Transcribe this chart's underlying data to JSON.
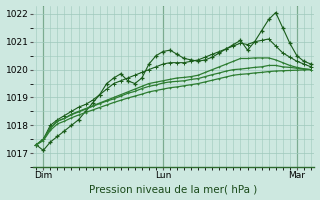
{
  "title": "",
  "xlabel": "Pression niveau de la mer( hPa )",
  "ylim": [
    1016.5,
    1022.3
  ],
  "yticks": [
    1017,
    1018,
    1019,
    1020,
    1021,
    1022
  ],
  "bg_color": "#cde8e0",
  "grid_color": "#9ec8bc",
  "line_color_dark": "#1a5c1a",
  "line_color_med": "#2e7d32",
  "xlabel_color": "#1a4a1a",
  "xlabel_fontsize": 7.5,
  "tick_fontsize": 6.5,
  "xtick_labels": [
    "Dim",
    "Lun",
    "Mar"
  ],
  "vline_color": "#2e6b2e",
  "series": [
    [
      1017.3,
      1017.1,
      1017.4,
      1017.6,
      1017.8,
      1018.0,
      1018.2,
      1018.5,
      1018.8,
      1019.1,
      1019.5,
      1019.7,
      1019.85,
      1019.6,
      1019.5,
      1019.7,
      1020.2,
      1020.5,
      1020.65,
      1020.7,
      1020.55,
      1020.4,
      1020.35,
      1020.3,
      1020.35,
      1020.45,
      1020.6,
      1020.75,
      1020.9,
      1021.05,
      1020.7,
      1021.0,
      1021.4,
      1021.8,
      1022.05,
      1021.5,
      1020.95,
      1020.5,
      1020.3,
      1020.2
    ],
    [
      1017.3,
      1017.5,
      1018.0,
      1018.2,
      1018.35,
      1018.5,
      1018.65,
      1018.75,
      1018.9,
      1019.1,
      1019.3,
      1019.5,
      1019.6,
      1019.7,
      1019.8,
      1019.9,
      1020.0,
      1020.1,
      1020.2,
      1020.25,
      1020.25,
      1020.25,
      1020.3,
      1020.35,
      1020.45,
      1020.55,
      1020.65,
      1020.75,
      1020.85,
      1020.95,
      1020.9,
      1021.0,
      1021.05,
      1021.1,
      1020.85,
      1020.6,
      1020.45,
      1020.3,
      1020.2,
      1020.1
    ],
    [
      1017.3,
      1017.5,
      1017.9,
      1018.15,
      1018.25,
      1018.4,
      1018.5,
      1018.6,
      1018.7,
      1018.8,
      1018.9,
      1019.0,
      1019.1,
      1019.2,
      1019.3,
      1019.4,
      1019.5,
      1019.55,
      1019.6,
      1019.65,
      1019.7,
      1019.72,
      1019.75,
      1019.8,
      1019.9,
      1020.0,
      1020.1,
      1020.2,
      1020.3,
      1020.4,
      1020.4,
      1020.42,
      1020.42,
      1020.42,
      1020.35,
      1020.25,
      1020.15,
      1020.08,
      1020.03,
      1020.0
    ],
    [
      1017.3,
      1017.5,
      1017.9,
      1018.15,
      1018.25,
      1018.38,
      1018.48,
      1018.58,
      1018.68,
      1018.78,
      1018.87,
      1018.95,
      1019.05,
      1019.15,
      1019.22,
      1019.32,
      1019.4,
      1019.45,
      1019.52,
      1019.56,
      1019.58,
      1019.6,
      1019.65,
      1019.68,
      1019.75,
      1019.82,
      1019.88,
      1019.95,
      1020.0,
      1020.02,
      1020.05,
      1020.08,
      1020.1,
      1020.15,
      1020.15,
      1020.1,
      1020.08,
      1020.05,
      1020.02,
      1020.0
    ],
    [
      1017.3,
      1017.45,
      1017.82,
      1018.05,
      1018.15,
      1018.27,
      1018.37,
      1018.46,
      1018.55,
      1018.64,
      1018.73,
      1018.82,
      1018.9,
      1018.98,
      1019.05,
      1019.12,
      1019.2,
      1019.25,
      1019.3,
      1019.35,
      1019.38,
      1019.42,
      1019.46,
      1019.5,
      1019.56,
      1019.62,
      1019.68,
      1019.74,
      1019.8,
      1019.83,
      1019.85,
      1019.88,
      1019.9,
      1019.93,
      1019.95,
      1019.96,
      1019.97,
      1019.98,
      1019.99,
      1020.0
    ]
  ]
}
